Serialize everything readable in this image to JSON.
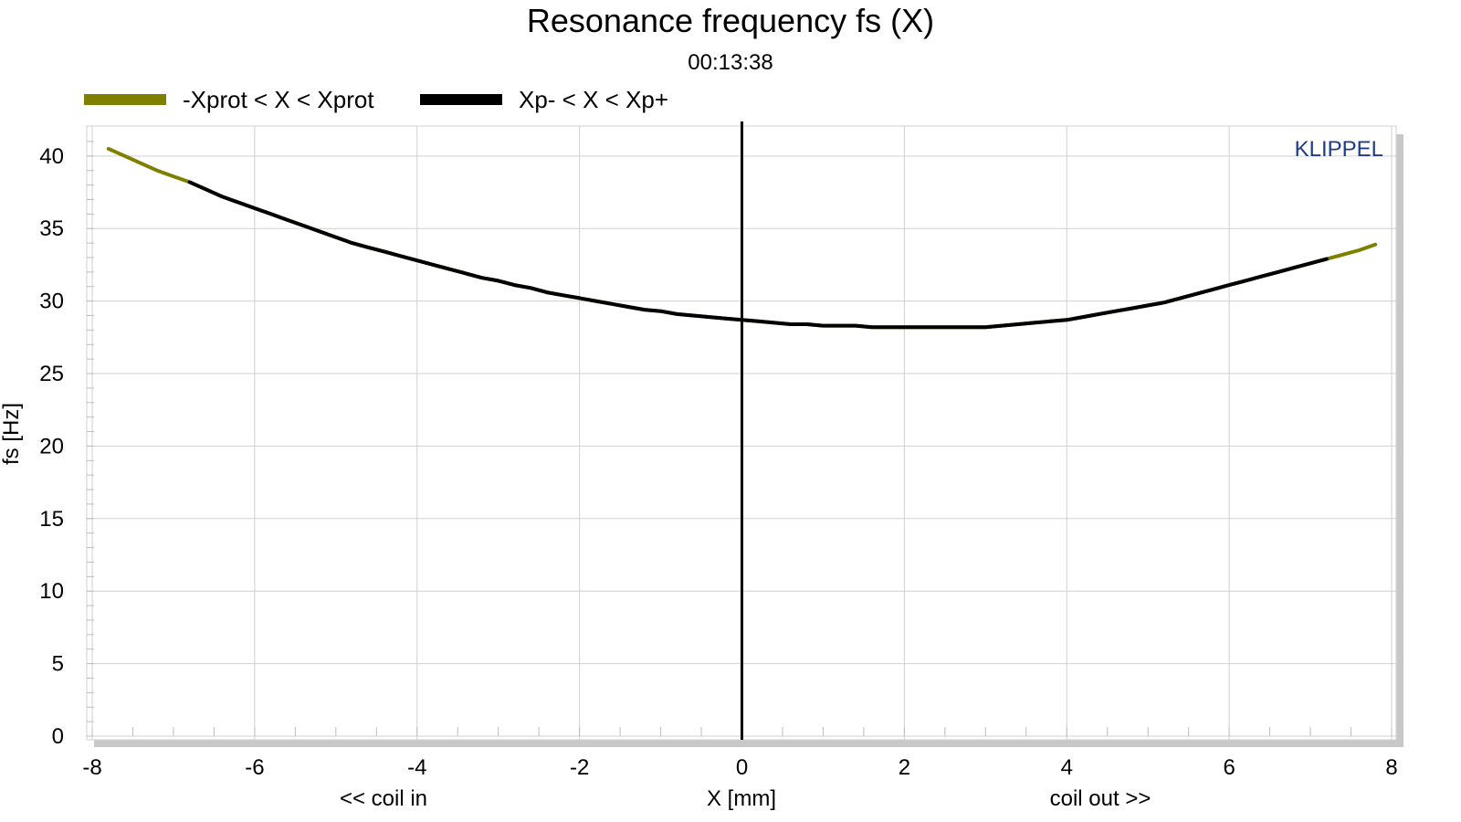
{
  "chart_data": {
    "type": "line",
    "title": "Resonance frequency fs (X)",
    "subtitle": "00:13:38",
    "xlabel": "X [mm]",
    "xlabel_left": "<< coil in",
    "xlabel_right": "coil out >>",
    "ylabel": "fs [Hz]",
    "brand": "KLIPPEL",
    "xlim": [
      -8,
      8
    ],
    "ylim": [
      0,
      41.5
    ],
    "x_ticks": [
      "-8",
      "-6",
      "-4",
      "-2",
      "0",
      "2",
      "4",
      "6",
      "8"
    ],
    "y_ticks": [
      "0",
      "5",
      "10",
      "15",
      "20",
      "25",
      "30",
      "35",
      "40"
    ],
    "grid": true,
    "legend_position": "top-left",
    "vertical_marker_x": 0,
    "colors": {
      "xprot": "#808000",
      "xp": "#000000",
      "marker": "#000000",
      "brand": "#1f3c88",
      "grid": "#d0d0d0"
    },
    "series": [
      {
        "name": "-Xprot < X < Xprot",
        "color": "#808000",
        "x": [
          -7.8,
          -7.6,
          -7.4,
          -7.2,
          -7.0,
          -6.8,
          -6.6,
          -6.4,
          -6.2,
          -6.0,
          -5.8,
          -5.6,
          -5.4,
          -5.2,
          -5.0,
          -4.8,
          -4.6,
          -4.4,
          -4.2,
          -4.0,
          -3.8,
          -3.6,
          -3.4,
          -3.2,
          -3.0,
          -2.8,
          -2.6,
          -2.4,
          -2.2,
          -2.0,
          -1.8,
          -1.6,
          -1.4,
          -1.2,
          -1.0,
          -0.8,
          -0.6,
          -0.4,
          -0.2,
          0.0,
          0.2,
          0.4,
          0.6,
          0.8,
          1.0,
          1.2,
          1.4,
          1.6,
          1.8,
          2.0,
          2.2,
          2.4,
          2.6,
          2.8,
          3.0,
          3.2,
          3.4,
          3.6,
          3.8,
          4.0,
          4.2,
          4.4,
          4.6,
          4.8,
          5.0,
          5.2,
          5.4,
          5.6,
          5.8,
          6.0,
          6.2,
          6.4,
          6.6,
          6.8,
          7.0,
          7.2,
          7.4,
          7.6,
          7.8
        ],
        "y": [
          40.5,
          40.0,
          39.5,
          39.0,
          38.6,
          38.2,
          37.7,
          37.2,
          36.8,
          36.4,
          36.0,
          35.6,
          35.2,
          34.8,
          34.4,
          34.0,
          33.7,
          33.4,
          33.1,
          32.8,
          32.5,
          32.2,
          31.9,
          31.6,
          31.4,
          31.1,
          30.9,
          30.6,
          30.4,
          30.2,
          30.0,
          29.8,
          29.6,
          29.4,
          29.3,
          29.1,
          29.0,
          28.9,
          28.8,
          28.7,
          28.6,
          28.5,
          28.4,
          28.4,
          28.3,
          28.3,
          28.3,
          28.2,
          28.2,
          28.2,
          28.2,
          28.2,
          28.2,
          28.2,
          28.2,
          28.3,
          28.4,
          28.5,
          28.6,
          28.7,
          28.9,
          29.1,
          29.3,
          29.5,
          29.7,
          29.9,
          30.2,
          30.5,
          30.8,
          31.1,
          31.4,
          31.7,
          32.0,
          32.3,
          32.6,
          32.9,
          33.2,
          33.5,
          33.9
        ]
      },
      {
        "name": "Xp- < X < Xp+",
        "color": "#000000",
        "x": [
          -6.8,
          -6.6,
          -6.4,
          -6.2,
          -6.0,
          -5.8,
          -5.6,
          -5.4,
          -5.2,
          -5.0,
          -4.8,
          -4.6,
          -4.4,
          -4.2,
          -4.0,
          -3.8,
          -3.6,
          -3.4,
          -3.2,
          -3.0,
          -2.8,
          -2.6,
          -2.4,
          -2.2,
          -2.0,
          -1.8,
          -1.6,
          -1.4,
          -1.2,
          -1.0,
          -0.8,
          -0.6,
          -0.4,
          -0.2,
          0.0,
          0.2,
          0.4,
          0.6,
          0.8,
          1.0,
          1.2,
          1.4,
          1.6,
          1.8,
          2.0,
          2.2,
          2.4,
          2.6,
          2.8,
          3.0,
          3.2,
          3.4,
          3.6,
          3.8,
          4.0,
          4.2,
          4.4,
          4.6,
          4.8,
          5.0,
          5.2,
          5.4,
          5.6,
          5.8,
          6.0,
          6.2,
          6.4,
          6.6,
          6.8,
          7.0,
          7.2
        ],
        "y": [
          38.2,
          37.7,
          37.2,
          36.8,
          36.4,
          36.0,
          35.6,
          35.2,
          34.8,
          34.4,
          34.0,
          33.7,
          33.4,
          33.1,
          32.8,
          32.5,
          32.2,
          31.9,
          31.6,
          31.4,
          31.1,
          30.9,
          30.6,
          30.4,
          30.2,
          30.0,
          29.8,
          29.6,
          29.4,
          29.3,
          29.1,
          29.0,
          28.9,
          28.8,
          28.7,
          28.6,
          28.5,
          28.4,
          28.4,
          28.3,
          28.3,
          28.3,
          28.2,
          28.2,
          28.2,
          28.2,
          28.2,
          28.2,
          28.2,
          28.2,
          28.3,
          28.4,
          28.5,
          28.6,
          28.7,
          28.9,
          29.1,
          29.3,
          29.5,
          29.7,
          29.9,
          30.2,
          30.5,
          30.8,
          31.1,
          31.4,
          31.7,
          32.0,
          32.3,
          32.6,
          32.9
        ]
      }
    ]
  }
}
